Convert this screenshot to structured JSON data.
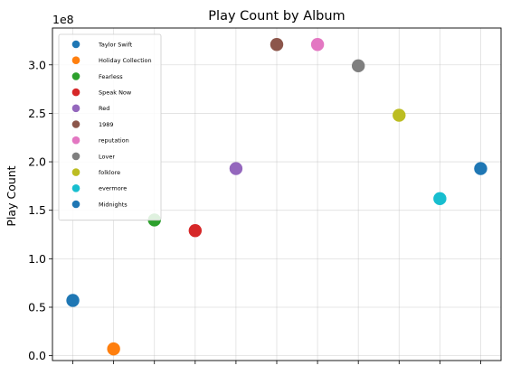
{
  "chart_data": {
    "type": "scatter",
    "title": "Play Count by Album",
    "xlabel": "",
    "ylabel": "Play Count",
    "y_multiplier_label": "1e8",
    "y_scale_exponent": 8,
    "ylim": [
      -0.05,
      3.38
    ],
    "yticks": [
      0.0,
      0.5,
      1.0,
      1.5,
      2.0,
      2.5,
      3.0
    ],
    "ytick_labels": [
      "0.0",
      "0.5",
      "1.0",
      "1.5",
      "2.0",
      "2.5",
      "3.0"
    ],
    "x_tick_count": 11,
    "grid": true,
    "legend_position": "upper-left",
    "series": [
      {
        "name": "Taylor Swift",
        "x": 0,
        "y": 57000000,
        "color": "#1f77b4"
      },
      {
        "name": "Holiday Collection",
        "x": 1,
        "y": 7000000,
        "color": "#ff7f0e"
      },
      {
        "name": "Fearless",
        "x": 2,
        "y": 140000000,
        "color": "#2ca02c"
      },
      {
        "name": "Speak Now",
        "x": 3,
        "y": 129000000,
        "color": "#d62728"
      },
      {
        "name": "Red",
        "x": 4,
        "y": 193000000,
        "color": "#9467bd"
      },
      {
        "name": "1989",
        "x": 5,
        "y": 321000000,
        "color": "#8c564b"
      },
      {
        "name": "reputation",
        "x": 6,
        "y": 321000000,
        "color": "#e377c2"
      },
      {
        "name": "Lover",
        "x": 7,
        "y": 299000000,
        "color": "#7f7f7f"
      },
      {
        "name": "folklore",
        "x": 8,
        "y": 248000000,
        "color": "#bcbd22"
      },
      {
        "name": "evermore",
        "x": 9,
        "y": 162000000,
        "color": "#17becf"
      },
      {
        "name": "Midnights",
        "x": 10,
        "y": 193000000,
        "color": "#1f77b4"
      }
    ]
  }
}
